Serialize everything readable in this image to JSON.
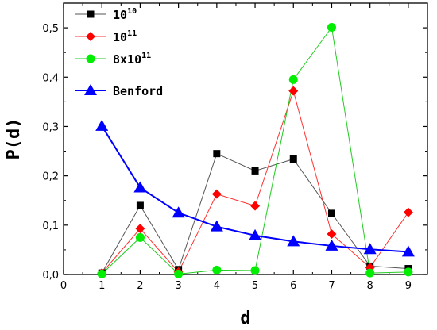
{
  "chart_data": {
    "type": "line",
    "xlabel": "d",
    "ylabel": "P(d)",
    "xlim": [
      0,
      9.5
    ],
    "ylim": [
      0,
      0.55
    ],
    "x_ticks": [
      "0",
      "1",
      "2",
      "3",
      "4",
      "5",
      "6",
      "7",
      "8",
      "9"
    ],
    "y_ticks": [
      "0,0",
      "0,1",
      "0,2",
      "0,3",
      "0,4",
      "0,5"
    ],
    "y_tick_values": [
      0,
      0.1,
      0.2,
      0.3,
      0.4,
      0.5
    ],
    "legend_position": "top-left",
    "series": [
      {
        "name_base": "10",
        "name_sup": "10",
        "color": "#000000",
        "line_color": "#555555",
        "marker": "square",
        "x": [
          1,
          2,
          3,
          4,
          5,
          6,
          7,
          8,
          9
        ],
        "y": [
          0.003,
          0.14,
          0.01,
          0.245,
          0.21,
          0.234,
          0.124,
          0.017,
          0.012
        ]
      },
      {
        "name_base": "10",
        "name_sup": "11",
        "color": "#ff0000",
        "line_color": "#ff3030",
        "marker": "diamond",
        "x": [
          1,
          2,
          3,
          4,
          5,
          6,
          7,
          8,
          9
        ],
        "y": [
          0.003,
          0.093,
          0.005,
          0.163,
          0.139,
          0.372,
          0.082,
          0.014,
          0.126
        ]
      },
      {
        "name_base": "8x10",
        "name_sup": "11",
        "color": "#00ee00",
        "line_color": "#22cc22",
        "marker": "circle",
        "x": [
          1,
          2,
          3,
          4,
          5,
          6,
          7,
          8,
          9
        ],
        "y": [
          0.001,
          0.075,
          0.001,
          0.009,
          0.008,
          0.395,
          0.501,
          0.003,
          0.005
        ]
      },
      {
        "name_base": "Benford",
        "name_sup": "",
        "color": "#0000ff",
        "line_color": "#0000ff",
        "marker": "triangle",
        "x": [
          1,
          2,
          3,
          4,
          5,
          6,
          7,
          8,
          9
        ],
        "y": [
          0.301,
          0.176,
          0.125,
          0.097,
          0.079,
          0.067,
          0.058,
          0.051,
          0.046
        ]
      }
    ]
  }
}
